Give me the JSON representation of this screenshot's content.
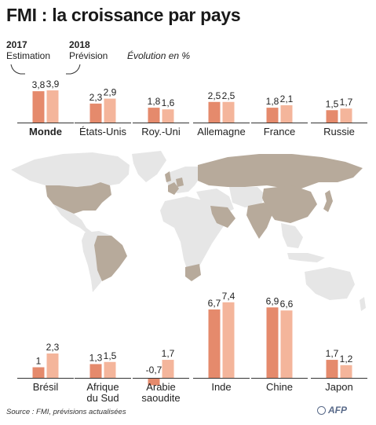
{
  "title": "FMI : la croissance par pays",
  "header": {
    "year_2017": "2017",
    "label_2017": "Estimation",
    "year_2018": "2018",
    "label_2018": "Prévision",
    "unit": "Évolution en %"
  },
  "source": "Source : FMI, prévisions actualisées",
  "logo": "AFP",
  "colors": {
    "bar_2017": "#e58a6c",
    "bar_2018": "#f4b59b",
    "map_highlight": "#b7aa9b",
    "map_land": "#e6e6e6"
  },
  "chart_data": {
    "type": "bar",
    "categories": [
      "Monde",
      "États-Unis",
      "Roy.-Uni",
      "Allemagne",
      "France",
      "Russie",
      "Brésil",
      "Afrique du Sud",
      "Arabie saoudite",
      "Inde",
      "Chine",
      "Japon"
    ],
    "series": [
      {
        "name": "2017 Estimation",
        "values": [
          3.8,
          2.3,
          1.8,
          2.5,
          1.8,
          1.5,
          1.0,
          1.3,
          -0.7,
          6.7,
          6.9,
          1.7
        ],
        "labels": [
          "3,8",
          "2,3",
          "1,8",
          "2,5",
          "1,8",
          "1,5",
          "1",
          "1,3",
          "-0,7",
          "6,7",
          "6,9",
          "1,7"
        ]
      },
      {
        "name": "2018 Prévision",
        "values": [
          3.9,
          2.9,
          1.6,
          2.5,
          2.1,
          1.7,
          2.3,
          1.5,
          1.7,
          7.4,
          6.6,
          1.2
        ],
        "labels": [
          "3,9",
          "2,9",
          "1,6",
          "2,5",
          "2,1",
          "1,7",
          "2,3",
          "1,5",
          "1,7",
          "7,4",
          "6,6",
          "1,2"
        ]
      }
    ],
    "category_labels": [
      "Monde",
      "États-Unis",
      "Roy.-Uni",
      "Allemagne",
      "France",
      "Russie",
      "Brésil",
      "Afrique\ndu Sud",
      "Arabie\nsaoudite",
      "Inde",
      "Chine",
      "Japon"
    ],
    "highlighted_countries": [
      "États-Unis",
      "Roy.-Uni",
      "Allemagne",
      "France",
      "Russie",
      "Brésil",
      "Afrique du Sud",
      "Arabie saoudite",
      "Inde",
      "Chine",
      "Japon"
    ]
  }
}
